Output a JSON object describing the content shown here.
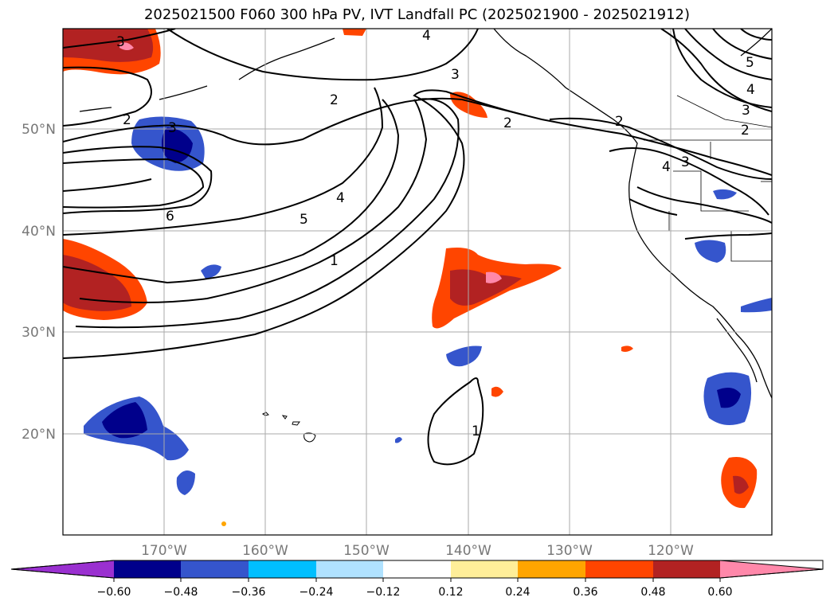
{
  "title": "2025021500 F060 300 hPa PV, IVT Landfall PC (2025021900 - 2025021912)",
  "map": {
    "lon_labels": [
      "170°W",
      "160°W",
      "150°W",
      "140°W",
      "130°W",
      "120°W"
    ],
    "lat_labels": [
      "50°N",
      "40°N",
      "30°N",
      "20°N"
    ],
    "pv_contour_labels": [
      "3",
      "4",
      "2",
      "3",
      "2",
      "5",
      "4",
      "2",
      "3",
      "2",
      "3",
      "3",
      "4",
      "6",
      "5",
      "4",
      "1",
      "2",
      "1"
    ]
  },
  "colorbar": {
    "ticks": [
      "−0.60",
      "−0.48",
      "−0.36",
      "−0.24",
      "−0.12",
      "0.12",
      "0.24",
      "0.36",
      "0.48",
      "0.60"
    ],
    "colors": [
      "#9a30d0",
      "#00008b",
      "#3555cc",
      "#00bfff",
      "#b0e2ff",
      "#ffffff",
      "#ffee99",
      "#ffa500",
      "#ff4500",
      "#b22222",
      "#ff88aa"
    ]
  }
}
